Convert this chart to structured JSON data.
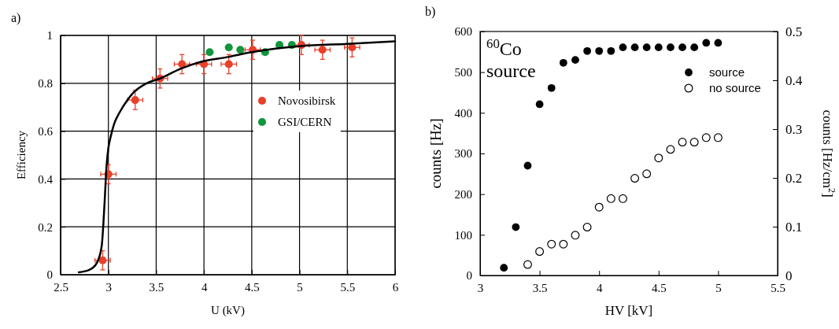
{
  "chart_data": [
    {
      "type": "scatter",
      "title": "a)",
      "xlabel": "U (kV)",
      "ylabel": "Efficiency",
      "xlim": [
        2.5,
        6
      ],
      "xticks": [
        2.5,
        3,
        3.5,
        4,
        4.5,
        5,
        5.5,
        6
      ],
      "ylim": [
        0,
        1
      ],
      "yticks": [
        0,
        0.2,
        0.4,
        0.6,
        0.8,
        1
      ],
      "grid": true,
      "legend": "right",
      "marker": "circle",
      "series": [
        {
          "name": "Novosibirsk",
          "color": "#e8402a",
          "x": [
            2.94,
            3.0,
            3.28,
            3.54,
            3.77,
            4.0,
            4.26,
            4.51,
            5.02,
            5.24,
            5.55
          ],
          "values": [
            0.06,
            0.42,
            0.73,
            0.82,
            0.88,
            0.88,
            0.88,
            0.94,
            0.96,
            0.94,
            0.95
          ],
          "errors": [
            0.04,
            0.04,
            0.04,
            0.04,
            0.04,
            0.04,
            0.04,
            0.04,
            0.04,
            0.04,
            0.04
          ],
          "xerrors": [
            0.08,
            0.08,
            0.08,
            0.08,
            0.08,
            0.08,
            0.08,
            0.08,
            0.08,
            0.08,
            0.08
          ]
        },
        {
          "name": "GSI/CERN",
          "color": "#10963c",
          "x": [
            4.06,
            4.26,
            4.38,
            4.64,
            4.79,
            4.92
          ],
          "values": [
            0.93,
            0.95,
            0.94,
            0.93,
            0.96,
            0.96
          ]
        },
        {
          "type": "line",
          "marker": "none",
          "color": "#000000",
          "x": [
            2.69,
            2.8,
            2.88,
            2.93,
            2.96,
            2.98,
            3.0,
            3.02,
            3.06,
            3.12,
            3.2,
            3.26,
            3.4,
            3.54,
            3.75,
            3.97,
            4.25,
            4.5,
            4.75,
            5.0,
            5.5,
            6.0
          ],
          "values": [
            0.01,
            0.02,
            0.05,
            0.12,
            0.3,
            0.45,
            0.53,
            0.57,
            0.63,
            0.68,
            0.73,
            0.76,
            0.8,
            0.82,
            0.86,
            0.89,
            0.91,
            0.93,
            0.945,
            0.955,
            0.965,
            0.975
          ]
        }
      ]
    },
    {
      "type": "scatter",
      "title": "b)",
      "xlabel": "HV  [kV]",
      "ylabel": "counts  [Hz]",
      "y2label": "counts  [Hz/cm$^{2}$]",
      "xlim": [
        3,
        5.5
      ],
      "xticks": [
        3,
        3.5,
        4,
        4.5,
        5,
        5.5
      ],
      "ylim": [
        0,
        600
      ],
      "yticks": [
        0,
        100,
        200,
        300,
        400,
        500,
        600
      ],
      "y2lim": [
        0,
        0.5
      ],
      "y2ticks": [
        0,
        0.1,
        0.2,
        0.3,
        0.4,
        0.5
      ],
      "legend": "top right",
      "marker": "circle",
      "annotations": [
        "$^{60}$Co",
        "source"
      ],
      "series": [
        {
          "name": "source",
          "color": "#000000",
          "x": [
            3.2,
            3.3,
            3.4,
            3.5,
            3.6,
            3.7,
            3.8,
            3.9,
            4.0,
            4.1,
            4.2,
            4.3,
            4.4,
            4.5,
            4.6,
            4.7,
            4.8,
            4.9,
            5.0
          ],
          "values": [
            19,
            119,
            270,
            421,
            461,
            523,
            530,
            552,
            552,
            552,
            561,
            561,
            561,
            561,
            561,
            561,
            561,
            572,
            572
          ]
        },
        {
          "name": "no source",
          "color": "#ffffff",
          "x": [
            3.4,
            3.5,
            3.6,
            3.7,
            3.8,
            3.9,
            4.0,
            4.1,
            4.2,
            4.3,
            4.4,
            4.5,
            4.6,
            4.7,
            4.8,
            4.9,
            5.0
          ],
          "values": [
            27,
            59,
            77,
            77,
            99,
            119,
            168,
            189,
            189,
            239,
            250,
            289,
            310,
            328,
            328,
            339,
            339
          ]
        }
      ]
    }
  ]
}
